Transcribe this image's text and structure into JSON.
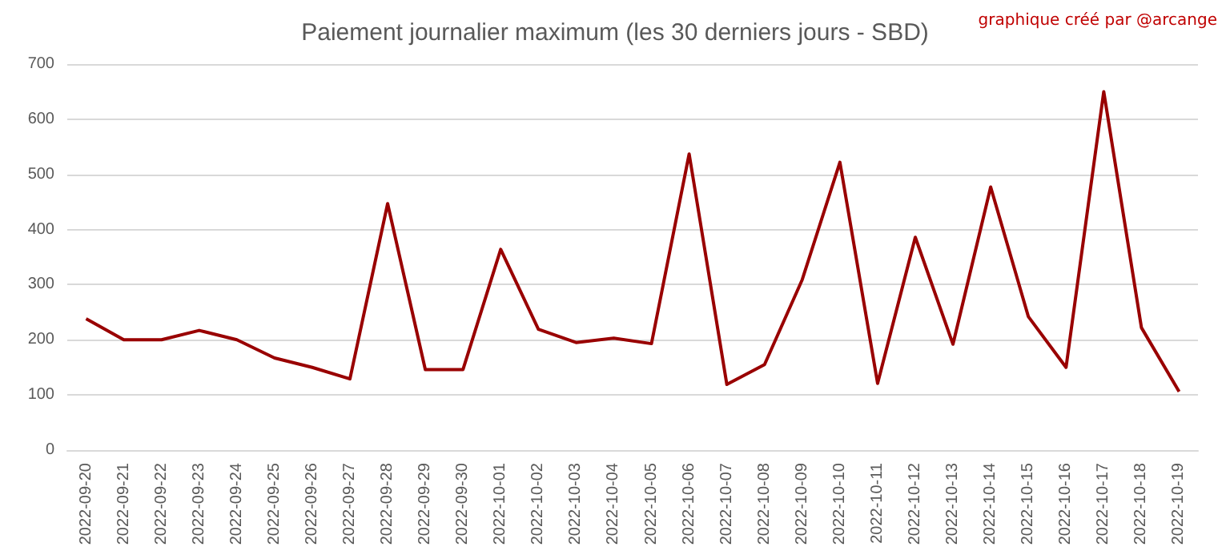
{
  "chart_data": {
    "type": "line",
    "title": "Paiement journalier maximum (les 30 derniers jours - SBD)",
    "annotations": [
      "graphique créé par @arcange"
    ],
    "categories": [
      "2022-09-20",
      "2022-09-21",
      "2022-09-22",
      "2022-09-23",
      "2022-09-24",
      "2022-09-25",
      "2022-09-26",
      "2022-09-27",
      "2022-09-28",
      "2022-09-29",
      "2022-09-30",
      "2022-10-01",
      "2022-10-02",
      "2022-10-03",
      "2022-10-04",
      "2022-10-05",
      "2022-10-06",
      "2022-10-07",
      "2022-10-08",
      "2022-10-09",
      "2022-10-10",
      "2022-10-11",
      "2022-10-12",
      "2022-10-13",
      "2022-10-14",
      "2022-10-15",
      "2022-10-16",
      "2022-10-17",
      "2022-10-18",
      "2022-10-19"
    ],
    "series": [
      {
        "color": "#990000",
        "values": [
          238,
          200,
          200,
          217,
          200,
          167,
          150,
          129,
          447,
          146,
          146,
          364,
          219,
          195,
          203,
          193,
          537,
          119,
          155,
          309,
          522,
          121,
          386,
          192,
          477,
          242,
          150,
          650,
          222,
          106
        ]
      }
    ],
    "ylim": [
      0,
      700
    ],
    "yticks": [
      0,
      100,
      200,
      300,
      400,
      500,
      600,
      700
    ],
    "grid": "y",
    "marker": "none",
    "line_style": "solid"
  }
}
